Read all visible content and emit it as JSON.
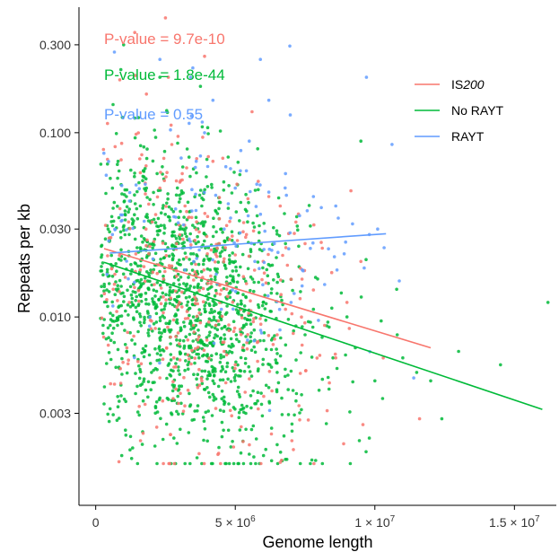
{
  "chart_data": {
    "type": "scatter",
    "title": "",
    "xlabel": "Genome length",
    "ylabel": "Repeats per kb",
    "x_scale": "linear",
    "y_scale": "log10",
    "xlim": [
      -600000,
      16500000
    ],
    "ylim": [
      0.00095,
      0.48
    ],
    "x_ticks": [
      {
        "value": 0,
        "label": "0",
        "exp": ""
      },
      {
        "value": 5000000,
        "label": "5 × 10",
        "exp": "6"
      },
      {
        "value": 10000000,
        "label": "1 × 10",
        "exp": "7"
      },
      {
        "value": 15000000,
        "label": "1.5 × 10",
        "exp": "7"
      }
    ],
    "y_ticks": [
      {
        "value": 0.003,
        "label": "0.003"
      },
      {
        "value": 0.01,
        "label": "0.010"
      },
      {
        "value": 0.03,
        "label": "0.030"
      },
      {
        "value": 0.1,
        "label": "0.100"
      },
      {
        "value": 0.3,
        "label": "0.300"
      }
    ],
    "grid": false,
    "legend_position": "top-right",
    "series": [
      {
        "name": "IS200",
        "name_plain": "IS",
        "name_italic": "200",
        "color": "#F8766D",
        "fit": {
          "x": [
            300000,
            12000000
          ],
          "y": [
            0.0235,
            0.0068
          ]
        },
        "p_value": "P-value = 9.7e-10",
        "points": [
          [
            2500000,
            0.42
          ],
          [
            1400000,
            0.35
          ],
          [
            2600000,
            0.2
          ],
          [
            2100000,
            0.015
          ],
          [
            3000000,
            0.012
          ],
          [
            3500000,
            0.009
          ],
          [
            2800000,
            0.006
          ],
          [
            4000000,
            0.022
          ],
          [
            4500000,
            0.014
          ],
          [
            3200000,
            0.04
          ],
          [
            5200000,
            0.011
          ],
          [
            6000000,
            0.02
          ],
          [
            1800000,
            0.03
          ],
          [
            2300000,
            0.05
          ],
          [
            6500000,
            0.008
          ],
          [
            7000000,
            0.016
          ],
          [
            8200000,
            0.009
          ],
          [
            9000000,
            0.012
          ],
          [
            4200000,
            0.07
          ],
          [
            5600000,
            0.13
          ],
          [
            10300000,
            0.006
          ],
          [
            11600000,
            0.0028
          ],
          [
            3800000,
            0.0045
          ],
          [
            2900000,
            0.025
          ],
          [
            1600000,
            0.018
          ],
          [
            4800000,
            0.033
          ],
          [
            7500000,
            0.025
          ],
          [
            3300000,
            0.0075
          ],
          [
            2000000,
            0.0095
          ],
          [
            6200000,
            0.045
          ],
          [
            8600000,
            0.006
          ],
          [
            2700000,
            0.11
          ],
          [
            5000000,
            0.0055
          ],
          [
            3600000,
            0.017
          ],
          [
            1200000,
            0.012
          ],
          [
            6800000,
            0.011
          ],
          [
            4300000,
            0.009
          ],
          [
            9500000,
            0.02
          ],
          [
            3100000,
            0.06
          ],
          [
            2400000,
            0.0035
          ],
          [
            5400000,
            0.028
          ],
          [
            7800000,
            0.014
          ],
          [
            4600000,
            0.0065
          ],
          [
            1900000,
            0.022
          ],
          [
            3900000,
            0.26
          ]
        ]
      },
      {
        "name": "No RAYT",
        "color": "#00BA38",
        "fit": {
          "x": [
            300000,
            16000000
          ],
          "y": [
            0.0198,
            0.00315
          ]
        },
        "p_value": "P-value = 1.8e-44",
        "points": [
          [
            1000000,
            0.3
          ],
          [
            900000,
            0.22
          ],
          [
            2300000,
            0.2
          ],
          [
            1400000,
            0.12
          ],
          [
            1100000,
            0.045
          ],
          [
            1800000,
            0.035
          ],
          [
            2500000,
            0.025
          ],
          [
            3000000,
            0.015
          ],
          [
            3500000,
            0.01
          ],
          [
            4000000,
            0.007
          ],
          [
            2000000,
            0.005
          ],
          [
            1700000,
            0.0035
          ],
          [
            2800000,
            0.0022
          ],
          [
            1500000,
            0.0016
          ],
          [
            3200000,
            0.0016
          ],
          [
            5500000,
            0.0018
          ],
          [
            6500000,
            0.005
          ],
          [
            7500000,
            0.008
          ],
          [
            9000000,
            0.01
          ],
          [
            9500000,
            0.09
          ],
          [
            16200000,
            0.012
          ],
          [
            13000000,
            0.0065
          ],
          [
            12400000,
            0.0028
          ],
          [
            11500000,
            0.005
          ],
          [
            10800000,
            0.008
          ],
          [
            400000,
            0.014
          ],
          [
            600000,
            0.05
          ],
          [
            800000,
            0.07
          ],
          [
            4500000,
            0.03
          ],
          [
            5000000,
            0.02
          ],
          [
            3800000,
            0.04
          ],
          [
            2200000,
            0.06
          ],
          [
            6000000,
            0.012
          ],
          [
            7000000,
            0.016
          ],
          [
            4200000,
            0.0045
          ],
          [
            3300000,
            0.0055
          ],
          [
            2700000,
            0.0085
          ],
          [
            1300000,
            0.018
          ],
          [
            500000,
            0.026
          ],
          [
            8000000,
            0.004
          ],
          [
            4800000,
            0.0065
          ],
          [
            5800000,
            0.0035
          ],
          [
            3600000,
            0.0125
          ],
          [
            2400000,
            0.0135
          ],
          [
            1900000,
            0.0085
          ],
          [
            6800000,
            0.025
          ],
          [
            7200000,
            0.035
          ],
          [
            8500000,
            0.006
          ],
          [
            10000000,
            0.0045
          ],
          [
            9800000,
            0.0022
          ],
          [
            11000000,
            0.006
          ],
          [
            3100000,
            0.025
          ],
          [
            2600000,
            0.035
          ],
          [
            1600000,
            0.04
          ],
          [
            4100000,
            0.018
          ],
          [
            5300000,
            0.009
          ],
          [
            6300000,
            0.0075
          ],
          [
            2900000,
            0.0075
          ],
          [
            3400000,
            0.0095
          ],
          [
            1200000,
            0.028
          ],
          [
            2100000,
            0.012
          ],
          [
            3700000,
            0.006
          ],
          [
            4400000,
            0.0105
          ],
          [
            5100000,
            0.0135
          ],
          [
            600000,
            0.0095
          ],
          [
            7800000,
            0.011
          ],
          [
            8800000,
            0.0135
          ],
          [
            9300000,
            0.0068
          ],
          [
            12000000,
            0.0045
          ],
          [
            14500000,
            0.0055
          ]
        ]
      },
      {
        "name": "RAYT",
        "color": "#619CFF",
        "fit": {
          "x": [
            500000,
            10400000
          ],
          "y": [
            0.0222,
            0.0283
          ]
        },
        "p_value": "P-value = 0.55",
        "points": [
          [
            2300000,
            0.25
          ],
          [
            3400000,
            0.2
          ],
          [
            5900000,
            0.25
          ],
          [
            4200000,
            0.15
          ],
          [
            6200000,
            0.15
          ],
          [
            9700000,
            0.2
          ],
          [
            3900000,
            0.1
          ],
          [
            5500000,
            0.09
          ],
          [
            6800000,
            0.06
          ],
          [
            7800000,
            0.045
          ],
          [
            8600000,
            0.04
          ],
          [
            9200000,
            0.032
          ],
          [
            4600000,
            0.03
          ],
          [
            5000000,
            0.05
          ],
          [
            3200000,
            0.018
          ],
          [
            5700000,
            0.02
          ],
          [
            8200000,
            0.015
          ],
          [
            7000000,
            0.012
          ],
          [
            4500000,
            0.011
          ],
          [
            600000,
            0.028
          ],
          [
            6400000,
            0.025
          ],
          [
            8900000,
            0.022
          ],
          [
            7400000,
            0.018
          ],
          [
            9800000,
            0.028
          ],
          [
            5200000,
            0.08
          ],
          [
            3600000,
            0.07
          ],
          [
            4900000,
            0.014
          ],
          [
            6600000,
            0.0085
          ],
          [
            2800000,
            0.035
          ],
          [
            10100000,
            0.03
          ]
        ]
      }
    ],
    "point_counts": {
      "IS200": 380,
      "No RAYT": 1400,
      "RAYT": 150
    }
  }
}
